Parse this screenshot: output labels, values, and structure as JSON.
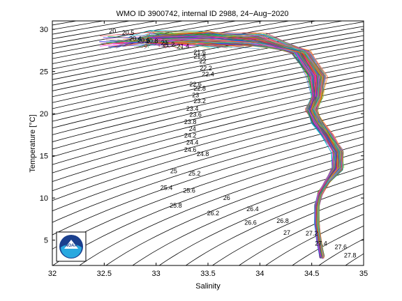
{
  "chart_data": {
    "type": "line",
    "title": "WMO ID 3900742, internal ID 2988, 24−Aug−2020",
    "xlabel": "Salinity",
    "ylabel": "Temperature [°C]",
    "xlim": [
      32,
      35
    ],
    "ylim": [
      2,
      31
    ],
    "x_ticks": [
      "32",
      "32.5",
      "33",
      "33.5",
      "34",
      "34.5",
      "35"
    ],
    "y_ticks": [
      "5",
      "10",
      "15",
      "20",
      "25",
      "30"
    ],
    "grid": false,
    "density_isopycnals": [
      {
        "label": "20",
        "s": 32.58,
        "t": 29.8
      },
      {
        "label": "20.5",
        "s": 32.73,
        "t": 29.6
      },
      {
        "label": "20.4",
        "s": 32.8,
        "t": 28.9
      },
      {
        "label": "20.6",
        "s": 32.88,
        "t": 28.7
      },
      {
        "label": "20.8",
        "s": 32.96,
        "t": 28.6
      },
      {
        "label": "21",
        "s": 33.08,
        "t": 28.4
      },
      {
        "label": "21.2",
        "s": 33.12,
        "t": 28.2
      },
      {
        "label": "21.4",
        "s": 33.26,
        "t": 28.0
      },
      {
        "label": "21.6",
        "s": 33.42,
        "t": 27.3
      },
      {
        "label": "21.8",
        "s": 33.42,
        "t": 26.8
      },
      {
        "label": "22",
        "s": 33.45,
        "t": 26.2
      },
      {
        "label": "22.2",
        "s": 33.48,
        "t": 25.4
      },
      {
        "label": "22.4",
        "s": 33.5,
        "t": 24.7
      },
      {
        "label": "22.6",
        "s": 33.38,
        "t": 23.5
      },
      {
        "label": "22.8",
        "s": 33.42,
        "t": 23.0
      },
      {
        "label": "23",
        "s": 33.38,
        "t": 22.2
      },
      {
        "label": "23.2",
        "s": 33.42,
        "t": 21.5
      },
      {
        "label": "23.4",
        "s": 33.35,
        "t": 20.6
      },
      {
        "label": "23.6",
        "s": 33.38,
        "t": 19.9
      },
      {
        "label": "23.8",
        "s": 33.33,
        "t": 19.0
      },
      {
        "label": "24",
        "s": 33.35,
        "t": 18.2
      },
      {
        "label": "24.2",
        "s": 33.33,
        "t": 17.4
      },
      {
        "label": "24.4",
        "s": 33.35,
        "t": 16.6
      },
      {
        "label": "24.6",
        "s": 33.33,
        "t": 15.7
      },
      {
        "label": "24.8",
        "s": 33.45,
        "t": 15.2
      },
      {
        "label": "25",
        "s": 33.17,
        "t": 13.2
      },
      {
        "label": "25.2",
        "s": 33.37,
        "t": 12.9
      },
      {
        "label": "25.4",
        "s": 33.1,
        "t": 11.2
      },
      {
        "label": "25.6",
        "s": 33.32,
        "t": 10.9
      },
      {
        "label": "25.8",
        "s": 33.19,
        "t": 9.1
      },
      {
        "label": "26",
        "s": 33.68,
        "t": 10.0
      },
      {
        "label": "26.2",
        "s": 33.55,
        "t": 8.2
      },
      {
        "label": "26.4",
        "s": 33.93,
        "t": 8.7
      },
      {
        "label": "26.6",
        "s": 33.91,
        "t": 7.1
      },
      {
        "label": "26.8",
        "s": 34.22,
        "t": 7.3
      },
      {
        "label": "27",
        "s": 34.26,
        "t": 5.9
      },
      {
        "label": "27.2",
        "s": 34.5,
        "t": 5.8
      },
      {
        "label": "27.4",
        "s": 34.59,
        "t": 4.6
      },
      {
        "label": "27.6",
        "s": 34.78,
        "t": 4.2
      },
      {
        "label": "27.8",
        "s": 34.87,
        "t": 3.2
      }
    ],
    "series": [
      {
        "values": [
          {
            "s": 32.5,
            "t": 28.1
          },
          {
            "s": 33.0,
            "t": 28.6
          },
          {
            "s": 33.5,
            "t": 28.7
          },
          {
            "s": 34.0,
            "t": 28.4
          },
          {
            "s": 34.4,
            "t": 27.3
          },
          {
            "s": 34.55,
            "t": 24.5
          },
          {
            "s": 34.55,
            "t": 22.0
          },
          {
            "s": 34.5,
            "t": 20.5
          },
          {
            "s": 34.55,
            "t": 19.0
          },
          {
            "s": 34.65,
            "t": 17.5
          },
          {
            "s": 34.75,
            "t": 15.5
          },
          {
            "s": 34.75,
            "t": 13.5
          },
          {
            "s": 34.65,
            "t": 12.0
          },
          {
            "s": 34.58,
            "t": 10.5
          },
          {
            "s": 34.55,
            "t": 9.0
          },
          {
            "s": 34.55,
            "t": 7.0
          },
          {
            "s": 34.57,
            "t": 5.0
          },
          {
            "s": 34.6,
            "t": 3.0
          }
        ]
      }
    ]
  },
  "logo": {
    "text": "NOAA"
  }
}
